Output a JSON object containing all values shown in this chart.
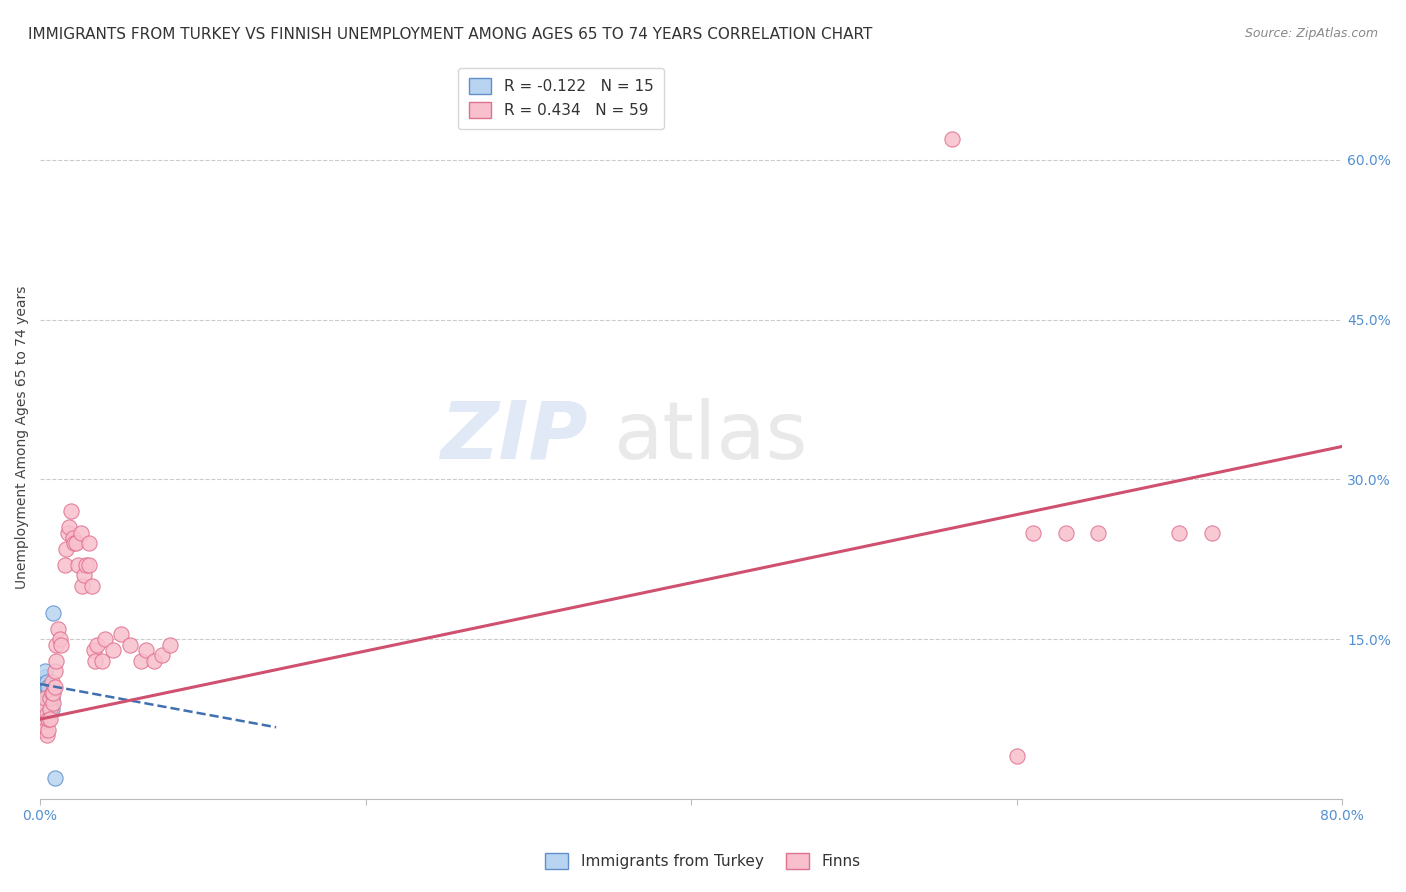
{
  "title": "IMMIGRANTS FROM TURKEY VS FINNISH UNEMPLOYMENT AMONG AGES 65 TO 74 YEARS CORRELATION CHART",
  "source": "Source: ZipAtlas.com",
  "ylabel": "Unemployment Among Ages 65 to 74 years",
  "xlim": [
    0.0,
    0.8
  ],
  "ylim": [
    0.0,
    0.68
  ],
  "yticks_right": [
    0.0,
    0.15,
    0.3,
    0.45,
    0.6
  ],
  "ytick_labels_right": [
    "",
    "15.0%",
    "30.0%",
    "45.0%",
    "60.0%"
  ],
  "watermark_zip": "ZIP",
  "watermark_atlas": "atlas",
  "legend_entries": [
    {
      "label": "R = -0.122   N = 15",
      "color": "#aac4e8"
    },
    {
      "label": "R = 0.434   N = 59",
      "color": "#f4a0b0"
    }
  ],
  "blue_scatter_x": [
    0.001,
    0.002,
    0.003,
    0.003,
    0.004,
    0.004,
    0.005,
    0.005,
    0.005,
    0.006,
    0.006,
    0.007,
    0.007,
    0.008,
    0.009
  ],
  "blue_scatter_y": [
    0.085,
    0.085,
    0.115,
    0.12,
    0.105,
    0.11,
    0.095,
    0.1,
    0.105,
    0.09,
    0.095,
    0.085,
    0.095,
    0.175,
    0.02
  ],
  "pink_scatter_x": [
    0.001,
    0.002,
    0.002,
    0.003,
    0.003,
    0.004,
    0.004,
    0.005,
    0.005,
    0.006,
    0.006,
    0.006,
    0.007,
    0.007,
    0.008,
    0.008,
    0.009,
    0.009,
    0.01,
    0.01,
    0.011,
    0.012,
    0.013,
    0.015,
    0.016,
    0.017,
    0.018,
    0.019,
    0.02,
    0.021,
    0.022,
    0.023,
    0.025,
    0.026,
    0.027,
    0.028,
    0.03,
    0.03,
    0.032,
    0.033,
    0.034,
    0.035,
    0.038,
    0.04,
    0.045,
    0.05,
    0.055,
    0.062,
    0.065,
    0.07,
    0.075,
    0.08,
    0.56,
    0.6,
    0.61,
    0.63,
    0.65,
    0.7,
    0.72
  ],
  "pink_scatter_y": [
    0.065,
    0.075,
    0.085,
    0.095,
    0.065,
    0.08,
    0.06,
    0.065,
    0.075,
    0.085,
    0.075,
    0.095,
    0.1,
    0.11,
    0.09,
    0.1,
    0.105,
    0.12,
    0.13,
    0.145,
    0.16,
    0.15,
    0.145,
    0.22,
    0.235,
    0.25,
    0.255,
    0.27,
    0.245,
    0.24,
    0.24,
    0.22,
    0.25,
    0.2,
    0.21,
    0.22,
    0.22,
    0.24,
    0.2,
    0.14,
    0.13,
    0.145,
    0.13,
    0.15,
    0.14,
    0.155,
    0.145,
    0.13,
    0.14,
    0.13,
    0.135,
    0.145,
    0.62,
    0.04,
    0.25,
    0.25,
    0.25,
    0.25,
    0.25
  ],
  "blue_line_x": [
    0.0,
    0.145
  ],
  "blue_line_y_start": 0.108,
  "blue_line_slope": -0.28,
  "pink_line_x": [
    0.0,
    0.8
  ],
  "pink_line_y_start": 0.075,
  "pink_line_slope": 0.32,
  "title_fontsize": 11,
  "axis_label_fontsize": 10,
  "tick_fontsize": 10,
  "scatter_size": 120,
  "blue_color": "#b8d4f0",
  "blue_edge_color": "#6090cc",
  "pink_color": "#f8c0cc",
  "pink_edge_color": "#e07090",
  "blue_line_color": "#4070b0",
  "pink_line_color": "#d05070",
  "right_axis_color": "#5590d0",
  "grid_color": "#cccccc"
}
